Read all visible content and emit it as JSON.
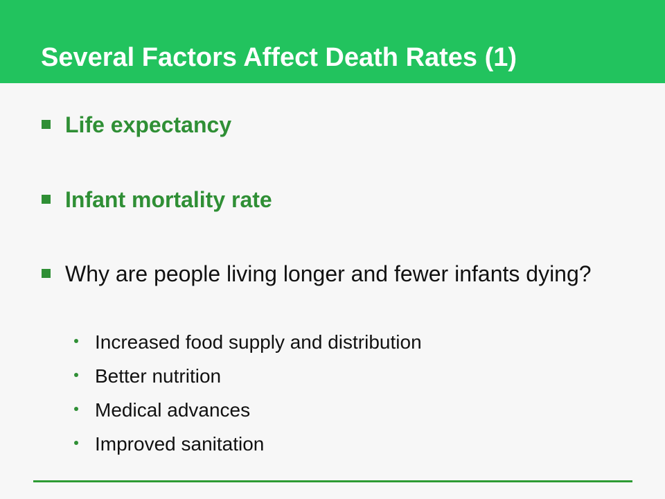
{
  "slide": {
    "title": "Several Factors Affect Death Rates (1)",
    "accent_color": "#22c35e",
    "bullets": [
      {
        "text": "Life expectancy",
        "marker": "square-bullet-icon"
      },
      {
        "text": "Infant mortality rate",
        "marker": "square-bullet-icon"
      },
      {
        "text": "Why are people living longer and fewer infants dying?",
        "marker": "square-bullet-icon",
        "sub_bullets": [
          "Increased food supply and distribution",
          "Better nutrition",
          "Medical advances",
          "Improved sanitation"
        ]
      }
    ]
  }
}
